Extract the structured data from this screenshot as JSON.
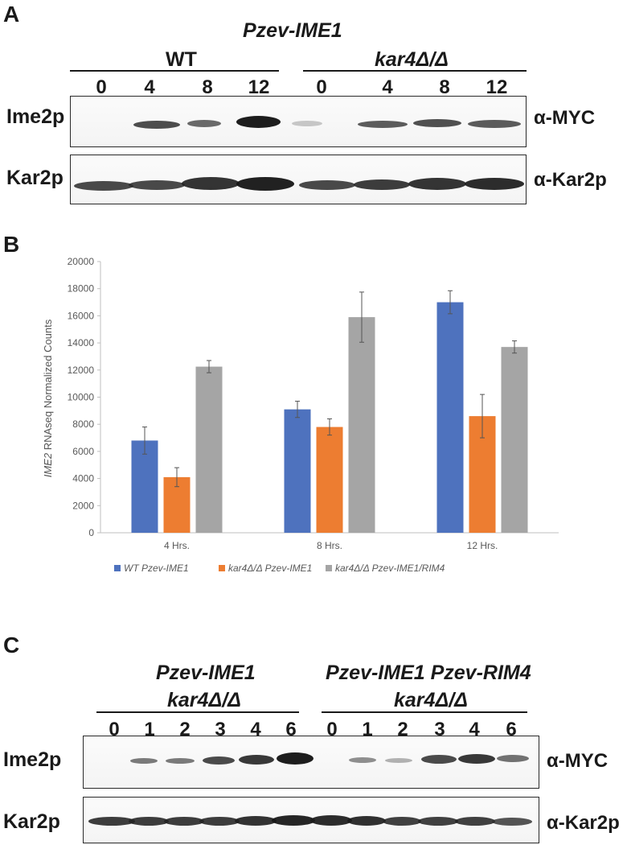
{
  "panel_a": {
    "letter": "A",
    "title": "Pzev-IME1",
    "groups": [
      "WT",
      "kar4Δ/Δ"
    ],
    "lanes": [
      "0",
      "4",
      "8",
      "12",
      "0",
      "4",
      "8",
      "12"
    ],
    "rows": [
      {
        "protein": "Ime2p",
        "antibody": "α-MYC"
      },
      {
        "protein": "Kar2p",
        "antibody": "α-Kar2p"
      }
    ]
  },
  "panel_b": {
    "letter": "B"
  },
  "chart_data": {
    "type": "bar",
    "title": "",
    "xlabel": "",
    "ylabel_italic": "IME2",
    "ylabel_rest": " RNAseq Normalized Counts",
    "ylim": [
      0,
      20000
    ],
    "yticks": [
      "0",
      "2000",
      "4000",
      "6000",
      "8000",
      "10000",
      "12000",
      "14000",
      "16000",
      "18000",
      "20000"
    ],
    "grid": false,
    "legend_position": "bottom",
    "categories": [
      "4 Hrs.",
      "8 Hrs.",
      "12 Hrs."
    ],
    "series": [
      {
        "name": "WT Pzev-IME1",
        "color": "#4e72be",
        "values": [
          6800,
          9100,
          17000
        ],
        "errors": [
          1000,
          600,
          850
        ]
      },
      {
        "name": "kar4Δ/Δ Pzev-IME1",
        "color": "#ed7d31",
        "values": [
          4100,
          7800,
          8600
        ],
        "errors": [
          700,
          600,
          1600
        ]
      },
      {
        "name": "kar4Δ/Δ Pzev-IME1/RIM4",
        "color": "#a5a5a5",
        "values": [
          12250,
          15900,
          13700
        ],
        "errors": [
          450,
          1850,
          450
        ]
      }
    ]
  },
  "panel_c": {
    "letter": "C",
    "groups": [
      {
        "line1": "Pzev-IME1",
        "line2": "kar4Δ/Δ"
      },
      {
        "line1": "Pzev-IME1 Pzev-RIM4",
        "line2": "kar4Δ/Δ"
      }
    ],
    "lanes": [
      "0",
      "1",
      "2",
      "3",
      "4",
      "6",
      "0",
      "1",
      "2",
      "3",
      "4",
      "6"
    ],
    "rows": [
      {
        "protein": "Ime2p",
        "antibody": "α-MYC"
      },
      {
        "protein": "Kar2p",
        "antibody": "α-Kar2p"
      }
    ]
  }
}
